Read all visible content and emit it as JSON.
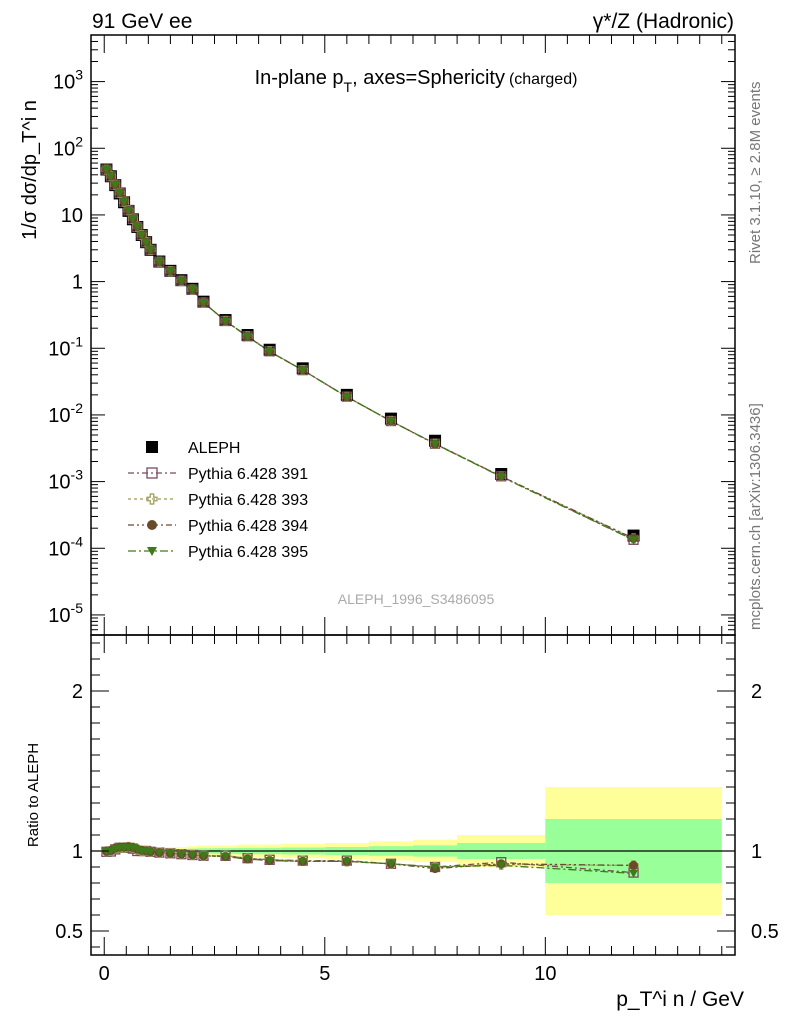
{
  "header": {
    "left": "91 GeV ee",
    "right": "γ*/Z (Hadronic)"
  },
  "plot_title": {
    "main": "In-plane p",
    "sub": "T",
    "rest": ", axes=Sphericity",
    "small": "(charged)"
  },
  "side_labels": {
    "rivet": "Rivet 3.1.10, ≥ 2.8M events",
    "mcplots": "mcplots.cern.ch [arXiv:1306.3436]"
  },
  "watermark": "ALEPH_1996_S3486095",
  "colors": {
    "data": "#000000",
    "s391": "#7a4a5f",
    "s393": "#9c9a56",
    "s394": "#6b4a2a",
    "s395": "#3f7a1a",
    "band_yellow": "#ffff99",
    "band_green": "#99ff99"
  },
  "chart_data": [
    {
      "type": "scatter",
      "yscale": "log",
      "xlim": [
        -0.3,
        14.3
      ],
      "ylim": [
        5e-06,
        5000
      ],
      "ylabel": "1/σ dσ/dp_T^i n",
      "y_ticks": [
        "10^3",
        "10^2",
        "10",
        "1",
        "10^-1",
        "10^-2",
        "10^-3",
        "10^-4",
        "10^-5"
      ],
      "legend_position": "lower-left",
      "legend": [
        "ALEPH",
        "Pythia 6.428 391",
        "Pythia 6.428 393",
        "Pythia 6.428 394",
        "Pythia 6.428 395"
      ],
      "x": [
        0.05,
        0.15,
        0.25,
        0.35,
        0.45,
        0.55,
        0.65,
        0.75,
        0.85,
        0.95,
        1.05,
        1.25,
        1.5,
        1.75,
        2.0,
        2.25,
        2.75,
        3.25,
        3.75,
        4.5,
        5.5,
        6.5,
        7.5,
        9.0,
        12.0
      ],
      "series": [
        {
          "name": "ALEPH",
          "values": [
            48,
            38,
            28,
            21,
            15.5,
            11.5,
            8.6,
            6.6,
            5.0,
            3.9,
            3.0,
            2.0,
            1.45,
            1.05,
            0.78,
            0.5,
            0.265,
            0.158,
            0.095,
            0.05,
            0.02,
            0.0088,
            0.0041,
            0.0013,
            0.000155
          ]
        },
        {
          "name": "Pythia 6.428 391",
          "values": [
            47.8,
            37.9,
            28.3,
            21.4,
            15.8,
            11.7,
            8.7,
            6.6,
            5.0,
            3.9,
            3.0,
            1.99,
            1.43,
            1.03,
            0.76,
            0.485,
            0.257,
            0.151,
            0.09,
            0.047,
            0.0188,
            0.0081,
            0.0037,
            0.0012,
            0.000134
          ]
        },
        {
          "name": "Pythia 6.428 393",
          "values": [
            47.9,
            38.0,
            28.4,
            21.4,
            15.8,
            11.8,
            8.8,
            6.7,
            5.0,
            3.9,
            3.0,
            1.99,
            1.43,
            1.03,
            0.76,
            0.485,
            0.257,
            0.151,
            0.09,
            0.047,
            0.0187,
            0.0081,
            0.0037,
            0.00119,
            0.000141
          ]
        },
        {
          "name": "Pythia 6.428 394",
          "values": [
            47.9,
            38.1,
            28.5,
            21.5,
            15.9,
            11.8,
            8.8,
            6.7,
            5.0,
            3.9,
            3.0,
            1.99,
            1.43,
            1.03,
            0.76,
            0.485,
            0.256,
            0.15,
            0.089,
            0.047,
            0.0187,
            0.0081,
            0.00365,
            0.0012,
            0.000141
          ]
        },
        {
          "name": "Pythia 6.428 395",
          "values": [
            47.8,
            38.0,
            28.4,
            21.4,
            15.8,
            11.7,
            8.8,
            6.7,
            5.0,
            3.9,
            3.0,
            1.99,
            1.43,
            1.03,
            0.76,
            0.485,
            0.256,
            0.15,
            0.089,
            0.047,
            0.0187,
            0.0081,
            0.00368,
            0.00118,
            0.000133
          ]
        }
      ]
    },
    {
      "type": "line",
      "xlim": [
        -0.3,
        14.3
      ],
      "ylim": [
        0.35,
        2.35
      ],
      "xlabel": "p_T^i n / GeV",
      "ylabel": "Ratio to ALEPH",
      "x_ticks": [
        "0",
        "5",
        "10"
      ],
      "y_ticks": [
        "0.5",
        "1",
        "2"
      ],
      "bin_edges": [
        0,
        0.1,
        0.2,
        0.3,
        0.4,
        0.5,
        0.6,
        0.7,
        0.8,
        0.9,
        1.0,
        1.1,
        1.4,
        1.6,
        1.9,
        2.1,
        2.5,
        3.0,
        3.5,
        4.0,
        5.0,
        6.0,
        7.0,
        8.0,
        10.0,
        14.0
      ],
      "band_yellow": [
        [
          0.99,
          1.01
        ],
        [
          0.99,
          1.01
        ],
        [
          0.99,
          1.01
        ],
        [
          0.99,
          1.01
        ],
        [
          0.99,
          1.01
        ],
        [
          0.99,
          1.01
        ],
        [
          0.99,
          1.01
        ],
        [
          0.99,
          1.01
        ],
        [
          0.985,
          1.015
        ],
        [
          0.985,
          1.015
        ],
        [
          0.985,
          1.015
        ],
        [
          0.98,
          1.02
        ],
        [
          0.975,
          1.025
        ],
        [
          0.975,
          1.025
        ],
        [
          0.97,
          1.03
        ],
        [
          0.965,
          1.035
        ],
        [
          0.965,
          1.035
        ],
        [
          0.96,
          1.04
        ],
        [
          0.96,
          1.04
        ],
        [
          0.955,
          1.045
        ],
        [
          0.95,
          1.05
        ],
        [
          0.94,
          1.06
        ],
        [
          0.93,
          1.07
        ],
        [
          0.9,
          1.1
        ],
        [
          0.6,
          1.4
        ]
      ],
      "band_green": [
        [
          0.995,
          1.005
        ],
        [
          0.995,
          1.005
        ],
        [
          0.995,
          1.005
        ],
        [
          0.995,
          1.005
        ],
        [
          0.995,
          1.005
        ],
        [
          0.995,
          1.005
        ],
        [
          0.995,
          1.005
        ],
        [
          0.995,
          1.005
        ],
        [
          0.992,
          1.008
        ],
        [
          0.992,
          1.008
        ],
        [
          0.992,
          1.008
        ],
        [
          0.99,
          1.01
        ],
        [
          0.99,
          1.01
        ],
        [
          0.988,
          1.012
        ],
        [
          0.985,
          1.015
        ],
        [
          0.983,
          1.017
        ],
        [
          0.982,
          1.018
        ],
        [
          0.98,
          1.02
        ],
        [
          0.98,
          1.02
        ],
        [
          0.978,
          1.022
        ],
        [
          0.975,
          1.025
        ],
        [
          0.97,
          1.03
        ],
        [
          0.965,
          1.035
        ],
        [
          0.95,
          1.05
        ],
        [
          0.8,
          1.2
        ]
      ],
      "x": [
        0.05,
        0.15,
        0.25,
        0.35,
        0.45,
        0.55,
        0.65,
        0.75,
        0.85,
        0.95,
        1.05,
        1.25,
        1.5,
        1.75,
        2.0,
        2.25,
        2.75,
        3.25,
        3.75,
        4.5,
        5.5,
        6.5,
        7.5,
        9.0,
        12.0
      ],
      "series": [
        {
          "name": "Pythia 6.428 391",
          "values": [
            0.995,
            0.997,
            1.01,
            1.02,
            1.02,
            1.02,
            1.015,
            1.0,
            1.0,
            1.0,
            0.995,
            0.99,
            0.985,
            0.98,
            0.975,
            0.97,
            0.97,
            0.955,
            0.945,
            0.94,
            0.94,
            0.92,
            0.9,
            0.93,
            0.865
          ]
        },
        {
          "name": "Pythia 6.428 393",
          "values": [
            0.998,
            1.0,
            1.015,
            1.02,
            1.02,
            1.025,
            1.02,
            1.01,
            1.0,
            1.0,
            0.995,
            0.99,
            0.985,
            0.98,
            0.975,
            0.97,
            0.97,
            0.955,
            0.945,
            0.94,
            0.935,
            0.92,
            0.9,
            0.915,
            0.91
          ]
        },
        {
          "name": "Pythia 6.428 394",
          "values": [
            0.998,
            1.003,
            1.018,
            1.025,
            1.026,
            1.026,
            1.022,
            1.012,
            1.004,
            1.0,
            0.996,
            0.99,
            0.985,
            0.98,
            0.975,
            0.97,
            0.965,
            0.95,
            0.94,
            0.935,
            0.935,
            0.92,
            0.89,
            0.92,
            0.91
          ]
        },
        {
          "name": "Pythia 6.428 395",
          "values": [
            0.996,
            1.0,
            1.015,
            1.02,
            1.02,
            1.02,
            1.02,
            1.012,
            1.0,
            1.0,
            0.995,
            0.99,
            0.985,
            0.98,
            0.975,
            0.97,
            0.965,
            0.95,
            0.94,
            0.935,
            0.935,
            0.92,
            0.9,
            0.91,
            0.86
          ]
        }
      ]
    }
  ]
}
